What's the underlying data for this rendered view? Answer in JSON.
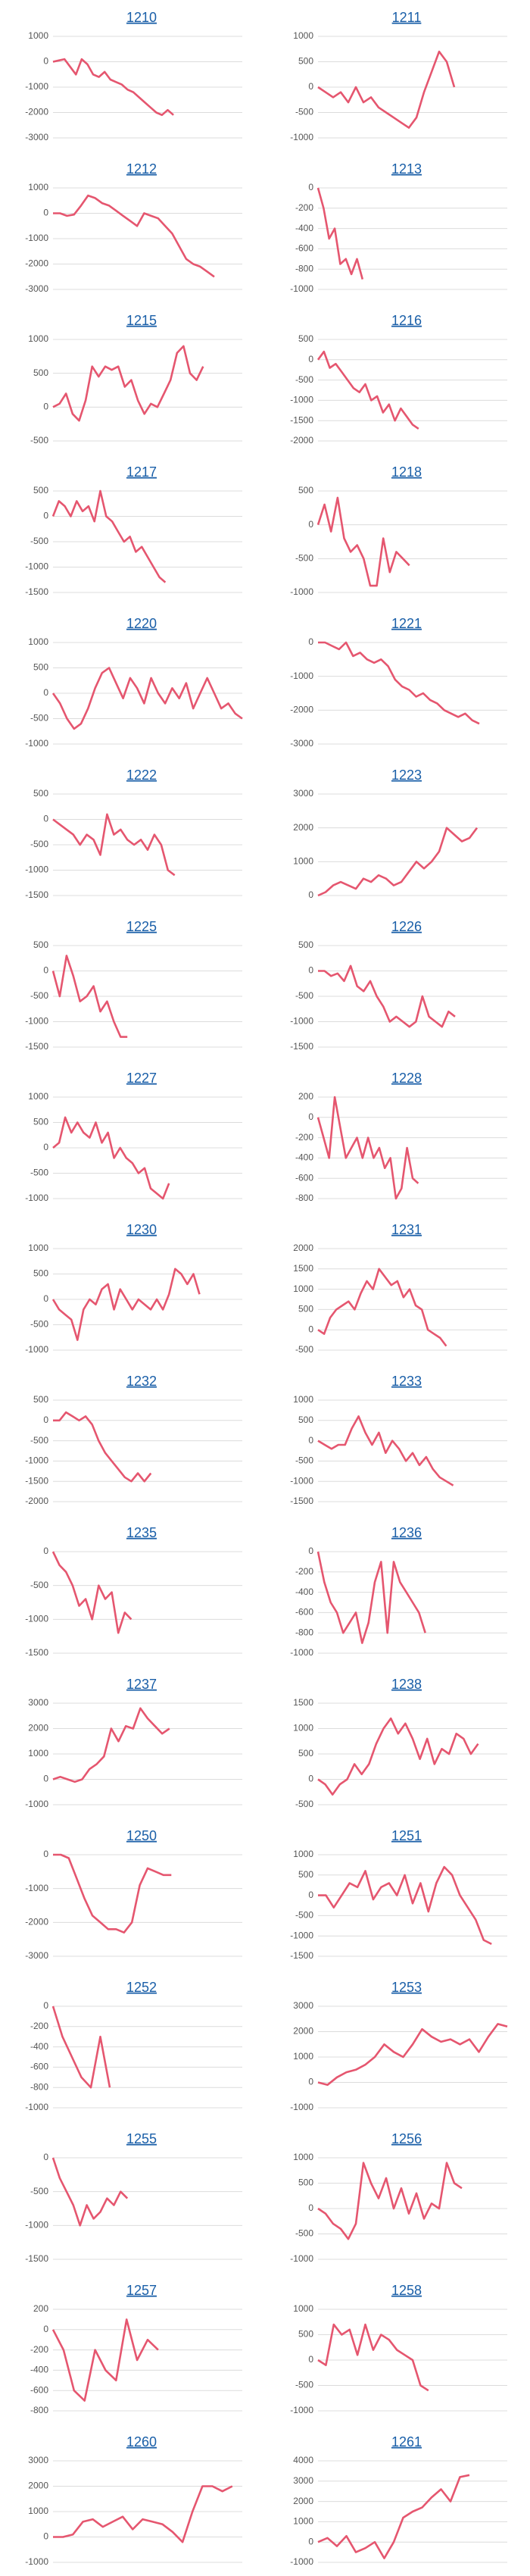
{
  "chart_data": [
    {
      "type": "line",
      "title": "1210",
      "color": "#e5566f",
      "grid": true,
      "xlim": [
        0,
        33
      ],
      "ylim": [
        -3000,
        1000
      ],
      "yticks": [
        -3000,
        -2000,
        -1000,
        0,
        1000
      ],
      "values": [
        0,
        50,
        100,
        -200,
        -500,
        100,
        -100,
        -500,
        -600,
        -400,
        -700,
        -800,
        -900,
        -1100,
        -1200,
        -1400,
        -1600,
        -1800,
        -2000,
        -2100,
        -1900,
        -2100
      ]
    },
    {
      "type": "line",
      "title": "1211",
      "color": "#e5566f",
      "grid": true,
      "xlim": [
        0,
        25
      ],
      "ylim": [
        -1000,
        1000
      ],
      "yticks": [
        -1000,
        -500,
        0,
        500,
        1000
      ],
      "values": [
        0,
        -100,
        -200,
        -100,
        -300,
        0,
        -300,
        -200,
        -400,
        -500,
        -600,
        -700,
        -800,
        -600,
        -100,
        300,
        700,
        500,
        0
      ]
    },
    {
      "type": "line",
      "title": "1212",
      "color": "#e5566f",
      "grid": true,
      "xlim": [
        0,
        27
      ],
      "ylim": [
        -3000,
        1000
      ],
      "yticks": [
        -3000,
        -2000,
        -1000,
        0,
        1000
      ],
      "values": [
        0,
        0,
        -100,
        -50,
        300,
        700,
        600,
        400,
        300,
        100,
        -100,
        -300,
        -500,
        0,
        -100,
        -200,
        -500,
        -800,
        -1300,
        -1800,
        -2000,
        -2100,
        -2300,
        -2500
      ]
    },
    {
      "type": "line",
      "title": "1213",
      "color": "#e5566f",
      "grid": true,
      "xlim": [
        0,
        34
      ],
      "ylim": [
        -1000,
        0
      ],
      "yticks": [
        -1000,
        -800,
        -600,
        -400,
        -200,
        0
      ],
      "values": [
        0,
        -200,
        -500,
        -400,
        -750,
        -700,
        -850,
        -700,
        -900
      ]
    },
    {
      "type": "line",
      "title": "1215",
      "color": "#e5566f",
      "grid": true,
      "xlim": [
        0,
        29
      ],
      "ylim": [
        -500,
        1000
      ],
      "yticks": [
        -500,
        0,
        500,
        1000
      ],
      "values": [
        0,
        50,
        200,
        -100,
        -200,
        100,
        600,
        450,
        600,
        550,
        600,
        300,
        400,
        100,
        -100,
        50,
        0,
        200,
        400,
        800,
        900,
        500,
        400,
        600
      ]
    },
    {
      "type": "line",
      "title": "1216",
      "color": "#e5566f",
      "grid": true,
      "xlim": [
        0,
        32
      ],
      "ylim": [
        -2000,
        500
      ],
      "yticks": [
        -2000,
        -1500,
        -1000,
        -500,
        0,
        500
      ],
      "values": [
        0,
        200,
        -200,
        -100,
        -300,
        -500,
        -700,
        -800,
        -600,
        -1000,
        -900,
        -1300,
        -1100,
        -1500,
        -1200,
        -1400,
        -1600,
        -1700
      ]
    },
    {
      "type": "line",
      "title": "1217",
      "color": "#e5566f",
      "grid": true,
      "xlim": [
        0,
        32
      ],
      "ylim": [
        -1500,
        500
      ],
      "yticks": [
        -1500,
        -1000,
        -500,
        0,
        500
      ],
      "values": [
        0,
        300,
        200,
        0,
        300,
        100,
        200,
        -100,
        500,
        0,
        -100,
        -300,
        -500,
        -400,
        -700,
        -600,
        -800,
        -1000,
        -1200,
        -1300
      ]
    },
    {
      "type": "line",
      "title": "1218",
      "color": "#e5566f",
      "grid": true,
      "xlim": [
        0,
        29
      ],
      "ylim": [
        -1000,
        500
      ],
      "yticks": [
        -1000,
        -500,
        0,
        500
      ],
      "values": [
        0,
        300,
        -100,
        400,
        -200,
        -400,
        -300,
        -500,
        -900,
        -900,
        -200,
        -700,
        -400,
        -500,
        -600
      ]
    },
    {
      "type": "line",
      "title": "1220",
      "color": "#e5566f",
      "grid": true,
      "xlim": [
        0,
        27
      ],
      "ylim": [
        -1000,
        1000
      ],
      "yticks": [
        -1000,
        -500,
        0,
        500,
        1000
      ],
      "values": [
        0,
        -200,
        -500,
        -700,
        -600,
        -300,
        100,
        400,
        500,
        200,
        -100,
        300,
        100,
        -200,
        300,
        0,
        -200,
        100,
        -100,
        200,
        -300,
        0,
        300,
        0,
        -300,
        -200,
        -400,
        -500
      ]
    },
    {
      "type": "line",
      "title": "1221",
      "color": "#e5566f",
      "grid": true,
      "xlim": [
        0,
        27
      ],
      "ylim": [
        -3000,
        0
      ],
      "yticks": [
        -3000,
        -2000,
        -1000,
        0
      ],
      "values": [
        0,
        0,
        -100,
        -200,
        0,
        -400,
        -300,
        -500,
        -600,
        -500,
        -700,
        -1100,
        -1300,
        -1400,
        -1600,
        -1500,
        -1700,
        -1800,
        -2000,
        -2100,
        -2200,
        -2100,
        -2300,
        -2400
      ]
    },
    {
      "type": "line",
      "title": "1222",
      "color": "#e5566f",
      "grid": true,
      "xlim": [
        0,
        28
      ],
      "ylim": [
        -1500,
        500
      ],
      "yticks": [
        -1500,
        -1000,
        -500,
        0,
        500
      ],
      "values": [
        0,
        -100,
        -200,
        -300,
        -500,
        -300,
        -400,
        -700,
        100,
        -300,
        -200,
        -400,
        -500,
        -400,
        -600,
        -300,
        -500,
        -1000,
        -1100
      ]
    },
    {
      "type": "line",
      "title": "1223",
      "color": "#e5566f",
      "grid": true,
      "xlim": [
        0,
        25
      ],
      "ylim": [
        0,
        3000
      ],
      "yticks": [
        0,
        1000,
        2000,
        3000
      ],
      "values": [
        0,
        100,
        300,
        400,
        300,
        200,
        500,
        400,
        600,
        500,
        300,
        400,
        700,
        1000,
        800,
        1000,
        1300,
        2000,
        1800,
        1600,
        1700,
        2000
      ]
    },
    {
      "type": "line",
      "title": "1225",
      "color": "#e5566f",
      "grid": true,
      "xlim": [
        0,
        28
      ],
      "ylim": [
        -1500,
        500
      ],
      "yticks": [
        -1500,
        -1000,
        -500,
        0,
        500
      ],
      "values": [
        0,
        -500,
        300,
        -100,
        -600,
        -500,
        -300,
        -800,
        -600,
        -1000,
        -1300,
        -1300
      ]
    },
    {
      "type": "line",
      "title": "1226",
      "color": "#e5566f",
      "grid": true,
      "xlim": [
        0,
        29
      ],
      "ylim": [
        -1500,
        500
      ],
      "yticks": [
        -1500,
        -1000,
        -500,
        0,
        500
      ],
      "values": [
        0,
        0,
        -100,
        -50,
        -200,
        100,
        -300,
        -400,
        -200,
        -500,
        -700,
        -1000,
        -900,
        -1000,
        -1100,
        -1000,
        -500,
        -900,
        -1000,
        -1100,
        -800,
        -900
      ]
    },
    {
      "type": "line",
      "title": "1227",
      "color": "#e5566f",
      "grid": true,
      "xlim": [
        0,
        31
      ],
      "ylim": [
        -1000,
        1000
      ],
      "yticks": [
        -1000,
        -500,
        0,
        500,
        1000
      ],
      "values": [
        0,
        100,
        600,
        300,
        500,
        300,
        200,
        500,
        100,
        300,
        -200,
        0,
        -200,
        -300,
        -500,
        -400,
        -800,
        -900,
        -1000,
        -700
      ]
    },
    {
      "type": "line",
      "title": "1228",
      "color": "#e5566f",
      "grid": true,
      "xlim": [
        0,
        34
      ],
      "ylim": [
        -800,
        200
      ],
      "yticks": [
        -800,
        -600,
        -400,
        -200,
        0,
        200
      ],
      "values": [
        0,
        -200,
        -400,
        200,
        -100,
        -400,
        -300,
        -200,
        -400,
        -200,
        -400,
        -300,
        -500,
        -400,
        -800,
        -700,
        -300,
        -600,
        -650
      ]
    },
    {
      "type": "line",
      "title": "1230",
      "color": "#e5566f",
      "grid": true,
      "xlim": [
        0,
        31
      ],
      "ylim": [
        -1000,
        1000
      ],
      "yticks": [
        -1000,
        -500,
        0,
        500,
        1000
      ],
      "values": [
        0,
        -200,
        -300,
        -400,
        -800,
        -200,
        0,
        -100,
        200,
        300,
        -200,
        200,
        0,
        -200,
        0,
        -100,
        -200,
        0,
        -200,
        100,
        600,
        500,
        300,
        500,
        100
      ]
    },
    {
      "type": "line",
      "title": "1231",
      "color": "#e5566f",
      "grid": true,
      "xlim": [
        0,
        31
      ],
      "ylim": [
        -500,
        2000
      ],
      "yticks": [
        -500,
        0,
        500,
        1000,
        1500,
        2000
      ],
      "values": [
        0,
        -100,
        300,
        500,
        600,
        700,
        500,
        900,
        1200,
        1000,
        1500,
        1300,
        1100,
        1200,
        800,
        1000,
        600,
        500,
        0,
        -100,
        -200,
        -400
      ]
    },
    {
      "type": "line",
      "title": "1232",
      "color": "#e5566f",
      "grid": true,
      "xlim": [
        0,
        29
      ],
      "ylim": [
        -2000,
        500
      ],
      "yticks": [
        -2000,
        -1500,
        -1000,
        -500,
        0,
        500
      ],
      "values": [
        0,
        0,
        200,
        100,
        0,
        100,
        -100,
        -500,
        -800,
        -1000,
        -1200,
        -1400,
        -1500,
        -1300,
        -1500,
        -1300
      ]
    },
    {
      "type": "line",
      "title": "1233",
      "color": "#e5566f",
      "grid": true,
      "xlim": [
        0,
        28
      ],
      "ylim": [
        -1500,
        1000
      ],
      "yticks": [
        -1500,
        -1000,
        -500,
        0,
        500,
        1000
      ],
      "values": [
        0,
        -100,
        -200,
        -100,
        -100,
        300,
        600,
        200,
        -100,
        200,
        -300,
        0,
        -200,
        -500,
        -300,
        -600,
        -400,
        -700,
        -900,
        -1000,
        -1100
      ]
    },
    {
      "type": "line",
      "title": "1235",
      "color": "#e5566f",
      "grid": true,
      "xlim": [
        0,
        29
      ],
      "ylim": [
        -1500,
        0
      ],
      "yticks": [
        -1500,
        -1000,
        -500,
        0
      ],
      "values": [
        0,
        -200,
        -300,
        -500,
        -800,
        -700,
        -1000,
        -500,
        -700,
        -600,
        -1200,
        -900,
        -1000
      ]
    },
    {
      "type": "line",
      "title": "1236",
      "color": "#e5566f",
      "grid": true,
      "xlim": [
        0,
        30
      ],
      "ylim": [
        -1000,
        0
      ],
      "yticks": [
        -1000,
        -800,
        -600,
        -400,
        -200,
        0
      ],
      "values": [
        0,
        -300,
        -500,
        -600,
        -800,
        -700,
        -600,
        -900,
        -700,
        -300,
        -100,
        -800,
        -100,
        -300,
        -400,
        -500,
        -600,
        -800
      ]
    },
    {
      "type": "line",
      "title": "1237",
      "color": "#e5566f",
      "grid": true,
      "xlim": [
        0,
        26
      ],
      "ylim": [
        -1000,
        3000
      ],
      "yticks": [
        -1000,
        0,
        1000,
        2000,
        3000
      ],
      "values": [
        0,
        100,
        0,
        -100,
        0,
        400,
        600,
        900,
        2000,
        1500,
        2100,
        2000,
        2800,
        2400,
        2100,
        1800,
        2000
      ]
    },
    {
      "type": "line",
      "title": "1238",
      "color": "#e5566f",
      "grid": true,
      "xlim": [
        0,
        26
      ],
      "ylim": [
        -500,
        1500
      ],
      "yticks": [
        -500,
        0,
        500,
        1000,
        1500
      ],
      "values": [
        0,
        -100,
        -300,
        -100,
        0,
        300,
        100,
        300,
        700,
        1000,
        1200,
        900,
        1100,
        800,
        400,
        800,
        300,
        600,
        500,
        900,
        800,
        500,
        700
      ]
    },
    {
      "type": "line",
      "title": "1250",
      "color": "#e5566f",
      "grid": true,
      "xlim": [
        0,
        24
      ],
      "ylim": [
        -3000,
        0
      ],
      "yticks": [
        -3000,
        -2000,
        -1000,
        0
      ],
      "values": [
        0,
        0,
        -100,
        -700,
        -1300,
        -1800,
        -2000,
        -2200,
        -2200,
        -2300,
        -2000,
        -900,
        -400,
        -500,
        -600,
        -600
      ]
    },
    {
      "type": "line",
      "title": "1251",
      "color": "#e5566f",
      "grid": true,
      "xlim": [
        0,
        24
      ],
      "ylim": [
        -1500,
        1000
      ],
      "yticks": [
        -1500,
        -1000,
        -500,
        0,
        500,
        1000
      ],
      "values": [
        0,
        0,
        -300,
        0,
        300,
        200,
        600,
        -100,
        200,
        300,
        0,
        500,
        -200,
        300,
        -400,
        300,
        700,
        500,
        0,
        -300,
        -600,
        -1100,
        -1200
      ]
    },
    {
      "type": "line",
      "title": "1252",
      "color": "#e5566f",
      "grid": true,
      "xlim": [
        0,
        20
      ],
      "ylim": [
        -1000,
        0
      ],
      "yticks": [
        -1000,
        -800,
        -600,
        -400,
        -200,
        0
      ],
      "values": [
        0,
        -300,
        -500,
        -700,
        -800,
        -300,
        -800
      ]
    },
    {
      "type": "line",
      "title": "1253",
      "color": "#e5566f",
      "grid": true,
      "xlim": [
        0,
        20
      ],
      "ylim": [
        -1000,
        3000
      ],
      "yticks": [
        -1000,
        0,
        1000,
        2000,
        3000
      ],
      "values": [
        0,
        -100,
        200,
        400,
        500,
        700,
        1000,
        1500,
        1200,
        1000,
        1500,
        2100,
        1800,
        1600,
        1700,
        1500,
        1700,
        1200,
        1800,
        2300,
        2200
      ]
    },
    {
      "type": "line",
      "title": "1255",
      "color": "#e5566f",
      "grid": true,
      "xlim": [
        0,
        28
      ],
      "ylim": [
        -1500,
        0
      ],
      "yticks": [
        -1500,
        -1000,
        -500,
        0
      ],
      "values": [
        0,
        -300,
        -500,
        -700,
        -1000,
        -700,
        -900,
        -800,
        -600,
        -700,
        -500,
        -600
      ]
    },
    {
      "type": "line",
      "title": "1256",
      "color": "#e5566f",
      "grid": true,
      "xlim": [
        0,
        25
      ],
      "ylim": [
        -1000,
        1000
      ],
      "yticks": [
        -1000,
        -500,
        0,
        500,
        1000
      ],
      "values": [
        0,
        -100,
        -300,
        -400,
        -600,
        -300,
        900,
        500,
        200,
        600,
        0,
        400,
        -100,
        300,
        -200,
        100,
        0,
        900,
        500,
        400
      ]
    },
    {
      "type": "line",
      "title": "1257",
      "color": "#e5566f",
      "grid": true,
      "xlim": [
        0,
        18
      ],
      "ylim": [
        -800,
        200
      ],
      "yticks": [
        -800,
        -600,
        -400,
        -200,
        0,
        200
      ],
      "values": [
        0,
        -200,
        -600,
        -700,
        -200,
        -400,
        -500,
        100,
        -300,
        -100,
        -200
      ]
    },
    {
      "type": "line",
      "title": "1258",
      "color": "#e5566f",
      "grid": true,
      "xlim": [
        0,
        24
      ],
      "ylim": [
        -1000,
        1000
      ],
      "yticks": [
        -1000,
        -500,
        0,
        500,
        1000
      ],
      "values": [
        0,
        -100,
        700,
        500,
        600,
        100,
        700,
        200,
        500,
        400,
        200,
        100,
        0,
        -500,
        -600
      ]
    },
    {
      "type": "line",
      "title": "1260",
      "color": "#e5566f",
      "grid": true,
      "xlim": [
        0,
        19
      ],
      "ylim": [
        -1000,
        3000
      ],
      "yticks": [
        -1000,
        0,
        1000,
        2000,
        3000
      ],
      "values": [
        0,
        0,
        100,
        600,
        700,
        400,
        600,
        800,
        300,
        700,
        600,
        500,
        200,
        -200,
        1000,
        2000,
        2000,
        1800,
        2000
      ]
    },
    {
      "type": "line",
      "title": "1261",
      "color": "#e5566f",
      "grid": true,
      "xlim": [
        0,
        20
      ],
      "ylim": [
        -1000,
        4000
      ],
      "yticks": [
        -1000,
        0,
        1000,
        2000,
        3000,
        4000
      ],
      "values": [
        0,
        200,
        -200,
        300,
        -500,
        -300,
        0,
        -800,
        0,
        1200,
        1500,
        1700,
        2200,
        2600,
        2000,
        3200,
        3300
      ]
    }
  ]
}
